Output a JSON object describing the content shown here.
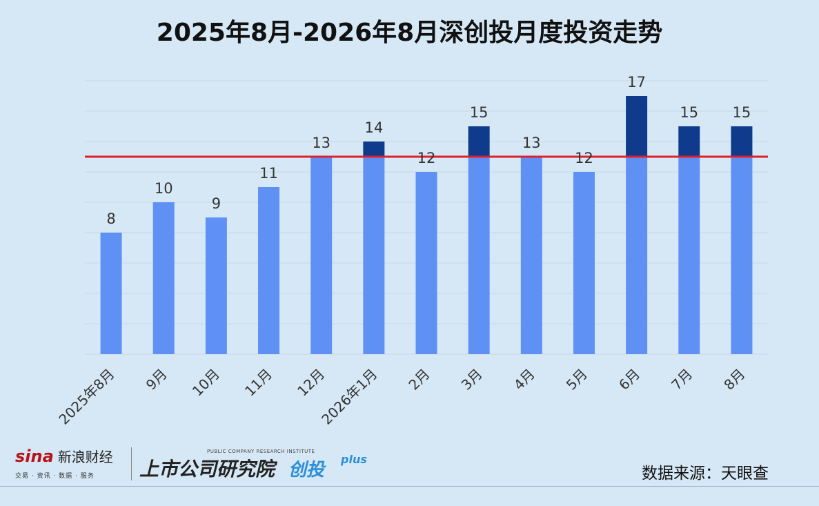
{
  "title": "2025年8月-2026年8月深创投月度投资走势",
  "chart_data": {
    "type": "bar",
    "title": "2025年8月-2026年8月深创投月度投资走势",
    "categories": [
      "2025年8月",
      "9月",
      "10月",
      "11月",
      "12月",
      "2026年1月",
      "2月",
      "3月",
      "4月",
      "5月",
      "6月",
      "7月",
      "8月"
    ],
    "values": [
      8,
      10,
      9,
      11,
      13,
      14,
      12,
      15,
      13,
      12,
      17,
      15,
      15
    ],
    "reference_line": 13,
    "ylim": [
      0,
      18
    ],
    "grid": true,
    "xlabel": "",
    "ylabel": "",
    "colors": {
      "bar": "#5f91f5",
      "bar_above_line": "#0f3b8c",
      "reference_line": "#e01f2a",
      "grid": "#c6d9e8",
      "label": "#333333"
    }
  },
  "footer": {
    "sina_logo": "sina",
    "sina_name": "新浪财经",
    "sina_sub": "交易 · 资讯 · 数据 · 服务",
    "institute_en": "PUBLIC COMPANY RESEARCH INSTITUTE",
    "institute_name": "上市公司研究院",
    "institute_tag": "创投",
    "institute_plus": "plus",
    "source": "数据来源：天眼查"
  }
}
